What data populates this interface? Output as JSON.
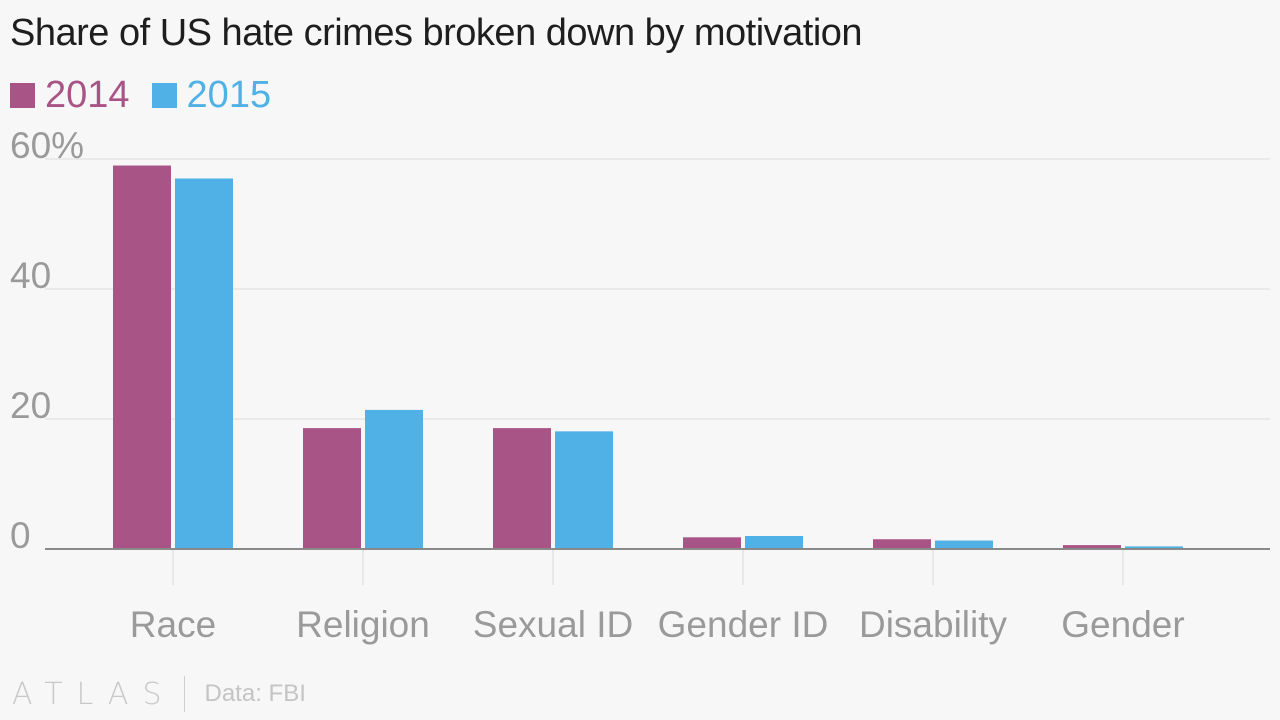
{
  "chart_data": {
    "type": "bar",
    "title": "Share of US hate crimes broken down by motivation",
    "xlabel": "",
    "ylabel": "",
    "categories": [
      "Race",
      "Religion",
      "Sexual ID",
      "Gender ID",
      "Disability",
      "Gender"
    ],
    "series": [
      {
        "name": "2014",
        "color": "#a85486",
        "values": [
          59.0,
          18.6,
          18.6,
          1.8,
          1.5,
          0.6
        ]
      },
      {
        "name": "2015",
        "color": "#4fb1e6",
        "values": [
          57.0,
          21.4,
          18.1,
          2.0,
          1.3,
          0.4
        ]
      }
    ],
    "ylim": [
      0,
      60
    ],
    "yticks": [
      0,
      20,
      40,
      60
    ],
    "ytick_labels": [
      "0",
      "20",
      "40",
      "60%"
    ],
    "grid": true,
    "legend_position": "top-left"
  },
  "footer": {
    "logo": "ATLAS",
    "source": "Data: FBI"
  }
}
